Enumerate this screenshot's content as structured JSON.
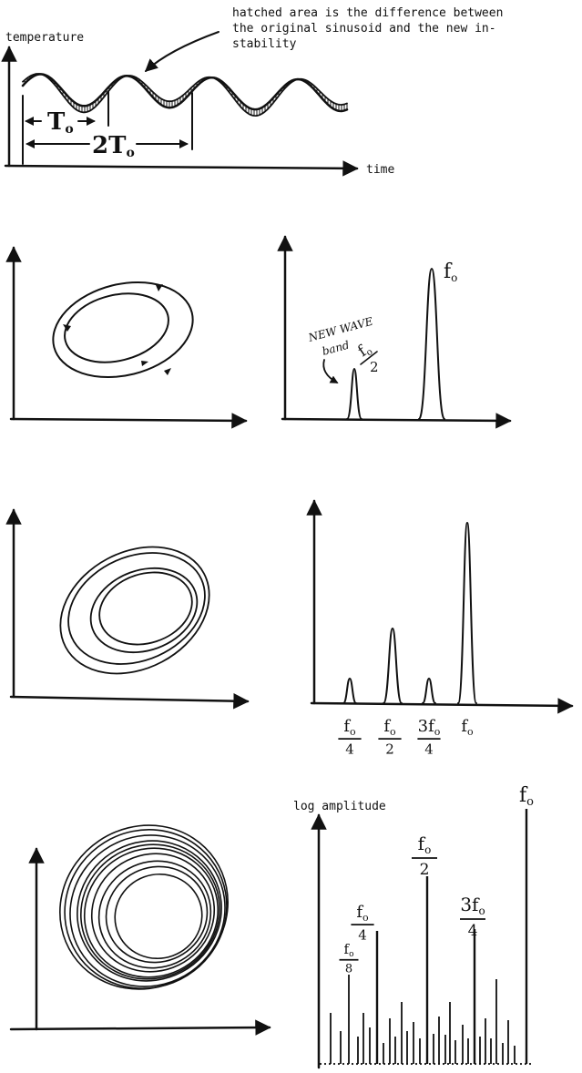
{
  "panel1": {
    "y_label": "temperature",
    "x_label": "time",
    "annotation_lines": [
      "hatched area is the difference between",
      "the original sinusoid and the new in-",
      "stability"
    ],
    "period_label_1": "T",
    "period_label_1_sub": "o",
    "period_label_2": "2T",
    "period_label_2_sub": "o"
  },
  "panel2": {
    "annotation_lines": [
      "NEW WAVE",
      "band"
    ],
    "peak_labels": [
      {
        "top": "f",
        "sub": "o",
        "bottom": "2"
      },
      {
        "top": "f",
        "sub": "o",
        "bottom": ""
      }
    ]
  },
  "panel3": {
    "axis_labels": [
      {
        "top": "f",
        "sub": "o",
        "bottom": "4"
      },
      {
        "top": "f",
        "sub": "o",
        "bottom": "2"
      },
      {
        "top": "3f",
        "sub": "o",
        "bottom": "4"
      },
      {
        "top": "f",
        "sub": "o",
        "bottom": ""
      }
    ]
  },
  "panel4": {
    "y_label": "log amplitude",
    "peak_labels": [
      {
        "top": "f",
        "sub": "o",
        "bottom": "8"
      },
      {
        "top": "f",
        "sub": "o",
        "bottom": "4"
      },
      {
        "top": "f",
        "sub": "o",
        "bottom": "2"
      },
      {
        "top": "3f",
        "sub": "o",
        "bottom": "4"
      },
      {
        "top": "f",
        "sub": "o",
        "bottom": ""
      }
    ]
  }
}
